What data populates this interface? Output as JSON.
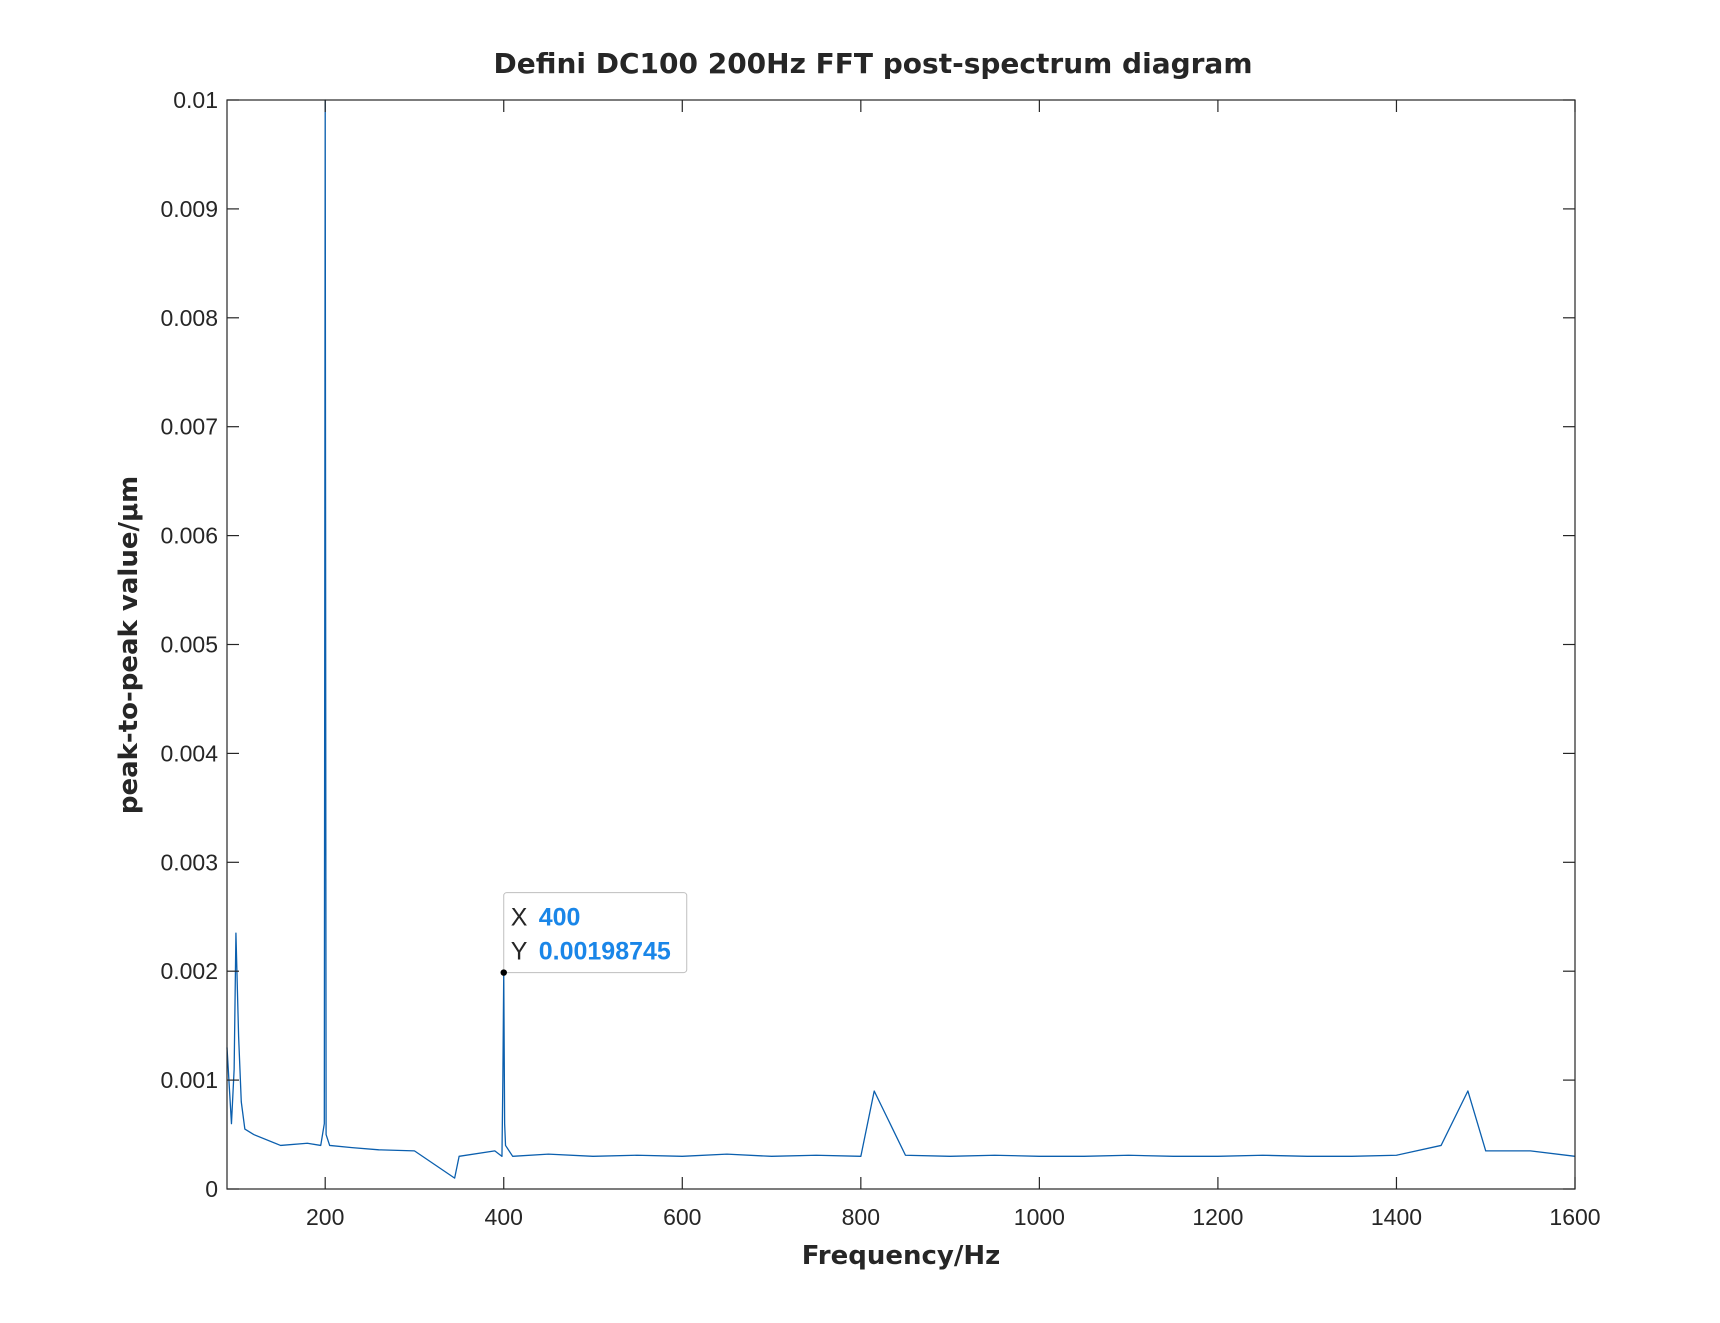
{
  "chart_data": {
    "type": "line",
    "title": "Defini DC100 200Hz FFT post-spectrum diagram",
    "xlabel": "Frequency/Hz",
    "ylabel": "peak-to-peak value/μm",
    "xlim": [
      90,
      1600
    ],
    "ylim": [
      0,
      0.01
    ],
    "xticks": [
      200,
      400,
      600,
      800,
      1000,
      1200,
      1400,
      1600
    ],
    "xtick_labels": [
      "200",
      "400",
      "600",
      "800",
      "1000",
      "1200",
      "1400",
      "1600"
    ],
    "yticks": [
      0,
      0.001,
      0.002,
      0.003,
      0.004,
      0.005,
      0.006,
      0.007,
      0.008,
      0.009,
      0.01
    ],
    "ytick_labels": [
      "0",
      "0.001",
      "0.002",
      "0.003",
      "0.004",
      "0.005",
      "0.006",
      "0.007",
      "0.008",
      "0.009",
      "0.01"
    ],
    "grid": false,
    "line_color": "#0b5fae",
    "series": [
      {
        "x": [
          90,
          95,
          98,
          100,
          103,
          106,
          110,
          120,
          150,
          180,
          195,
          199,
          200,
          201,
          205,
          230,
          260,
          300,
          345,
          350,
          390,
          398,
          399,
          400,
          401,
          402,
          410,
          450,
          500,
          550,
          600,
          650,
          700,
          750,
          800,
          815,
          850,
          900,
          950,
          1000,
          1050,
          1100,
          1150,
          1200,
          1250,
          1300,
          1350,
          1400,
          1450,
          1480,
          1500,
          1550,
          1600
        ],
        "y": [
          0.0013,
          0.0006,
          0.0011,
          0.00235,
          0.0014,
          0.0008,
          0.00055,
          0.0005,
          0.0004,
          0.00042,
          0.0004,
          0.0006,
          0.01,
          0.0005,
          0.0004,
          0.00038,
          0.00036,
          0.00035,
          0.0001,
          0.0003,
          0.00035,
          0.0003,
          0.001,
          0.00198745,
          0.0006,
          0.0004,
          0.0003,
          0.00032,
          0.0003,
          0.00031,
          0.0003,
          0.00032,
          0.0003,
          0.00031,
          0.0003,
          0.0009,
          0.00031,
          0.0003,
          0.00031,
          0.0003,
          0.0003,
          0.00031,
          0.0003,
          0.0003,
          0.00031,
          0.0003,
          0.0003,
          0.00031,
          0.0004,
          0.0009,
          0.00035,
          0.00035,
          0.0003
        ]
      }
    ],
    "annotation": {
      "x": 400,
      "y": 0.00198745,
      "x_key": "X",
      "x_value": "400",
      "y_key": "Y",
      "y_value": "0.00198745",
      "value_color": "#1a86e8"
    }
  }
}
